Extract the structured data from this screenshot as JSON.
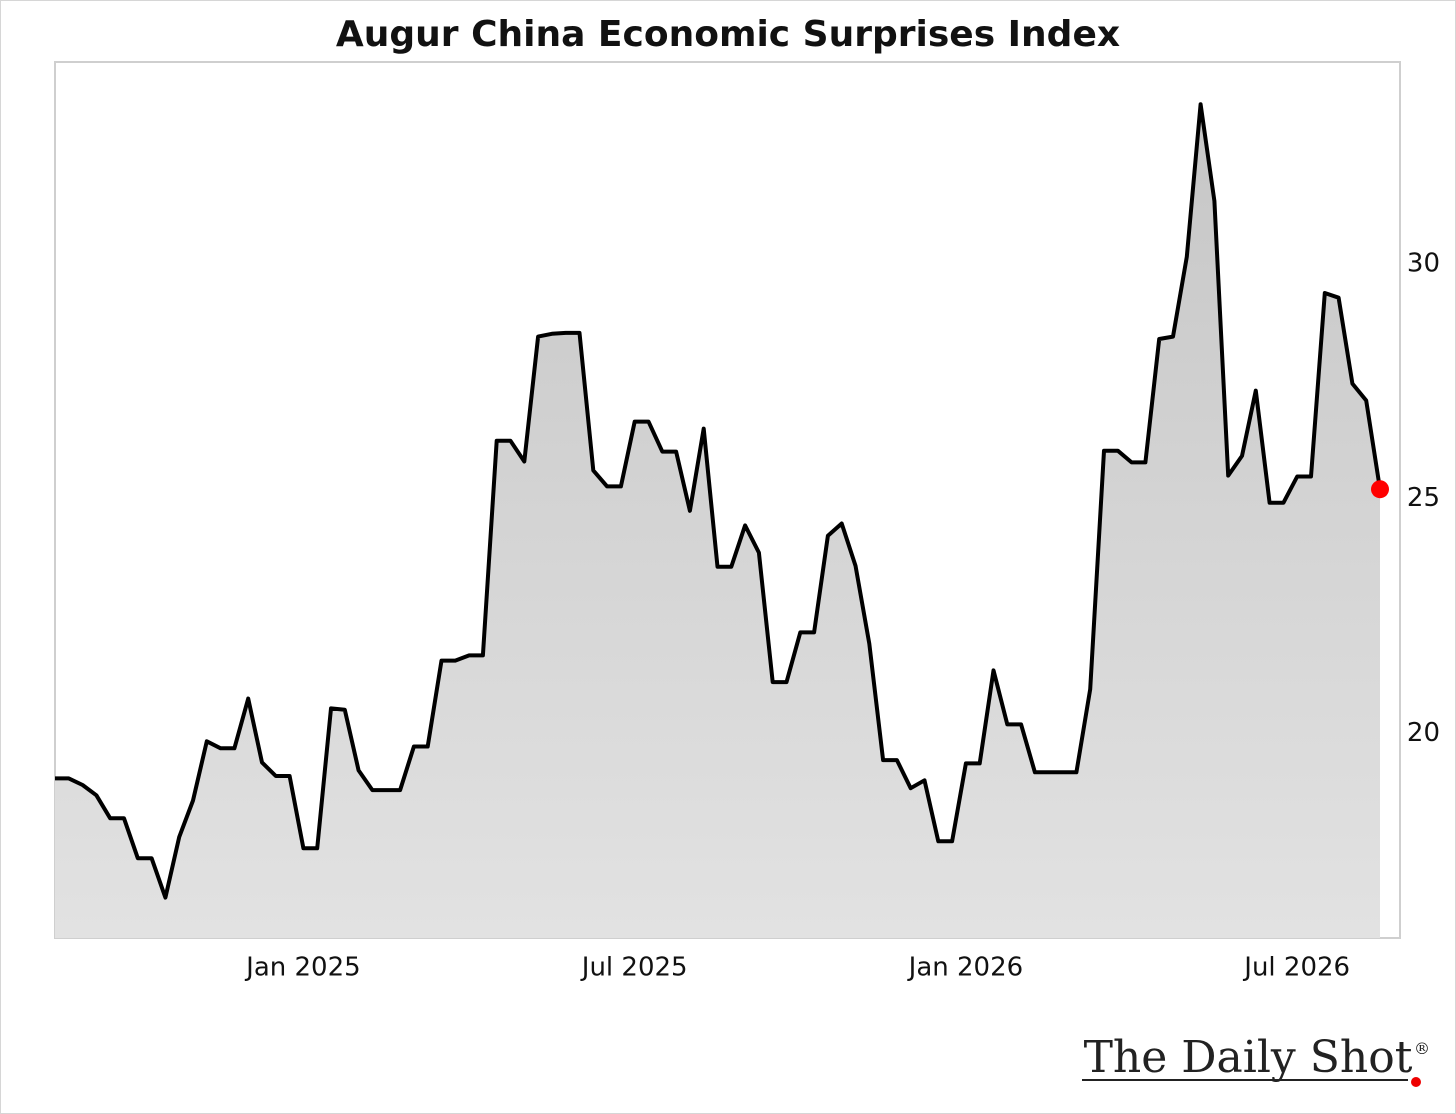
{
  "chart_data": {
    "type": "area",
    "title": "Augur China Economic Surprises Index",
    "categories": [
      null,
      null,
      null,
      null,
      null,
      null,
      null,
      null,
      null,
      null,
      null,
      null,
      null,
      null,
      null,
      null,
      null,
      null,
      "Jan 2025",
      null,
      null,
      null,
      null,
      null,
      null,
      null,
      null,
      null,
      null,
      null,
      null,
      null,
      null,
      null,
      null,
      null,
      null,
      null,
      null,
      null,
      null,
      null,
      "Jul 2025",
      null,
      null,
      null,
      null,
      null,
      null,
      null,
      null,
      null,
      null,
      null,
      null,
      null,
      null,
      null,
      null,
      null,
      null,
      null,
      null,
      null,
      null,
      null,
      "Jan 2026",
      null,
      null,
      null,
      null,
      null,
      null,
      null,
      null,
      null,
      null,
      null,
      null,
      null,
      null,
      null,
      null,
      null,
      null,
      null,
      null,
      null,
      null,
      null,
      "Jul 2026",
      null,
      null,
      null,
      null,
      null,
      null
    ],
    "values": [
      19.04,
      19.04,
      18.9,
      18.68,
      18.19,
      18.19,
      17.34,
      17.34,
      16.5,
      17.79,
      18.57,
      19.83,
      19.68,
      19.68,
      20.74,
      19.38,
      19.09,
      19.09,
      17.55,
      17.55,
      20.53,
      20.5,
      19.21,
      18.79,
      18.79,
      18.79,
      19.72,
      19.72,
      21.55,
      21.55,
      21.66,
      21.66,
      26.23,
      26.23,
      25.79,
      28.45,
      28.51,
      28.53,
      28.53,
      25.6,
      25.26,
      25.26,
      26.64,
      26.64,
      26.0,
      26.0,
      24.74,
      26.49,
      23.55,
      23.55,
      24.43,
      23.85,
      21.09,
      21.09,
      22.15,
      22.15,
      24.21,
      24.47,
      23.57,
      21.91,
      19.43,
      19.43,
      18.83,
      19.0,
      17.7,
      17.7,
      19.36,
      19.36,
      21.34,
      20.19,
      20.19,
      19.17,
      19.17,
      19.17,
      19.17,
      20.94,
      26.02,
      26.02,
      25.77,
      25.77,
      28.4,
      28.45,
      30.15,
      33.4,
      31.34,
      25.49,
      25.91,
      27.3,
      24.91,
      24.91,
      25.47,
      25.47,
      29.38,
      29.28,
      27.45,
      27.09,
      25.2
    ],
    "color": "#000000",
    "fill_color": "#d0d0d0",
    "last_point_color": "#ff0000",
    "ylim": [
      15.64,
      34.3
    ],
    "yticks": [
      20,
      25,
      30
    ],
    "y_axis_side": "right",
    "grid": false
  },
  "branding": {
    "name": "The Daily Shot",
    "mark": "®"
  }
}
